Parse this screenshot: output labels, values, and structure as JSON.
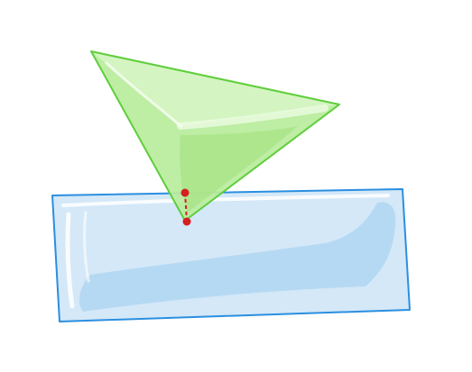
{
  "diagram": {
    "description_shapes": [
      "green-triangle",
      "blue-rectangle",
      "red-contact-line"
    ],
    "colors": {
      "triangle_fill": "#b8ec9c",
      "triangle_fill_light": "#d6f5c4",
      "triangle_highlight": "#ecfbe2",
      "triangle_stroke": "#5fce3c",
      "rect_fill": "#d4e8f8",
      "rect_fill_dark": "#b3d7f2",
      "rect_highlight": "#ffffff",
      "rect_stroke": "#2b8fe0",
      "contact_color": "#d61f1f"
    }
  }
}
